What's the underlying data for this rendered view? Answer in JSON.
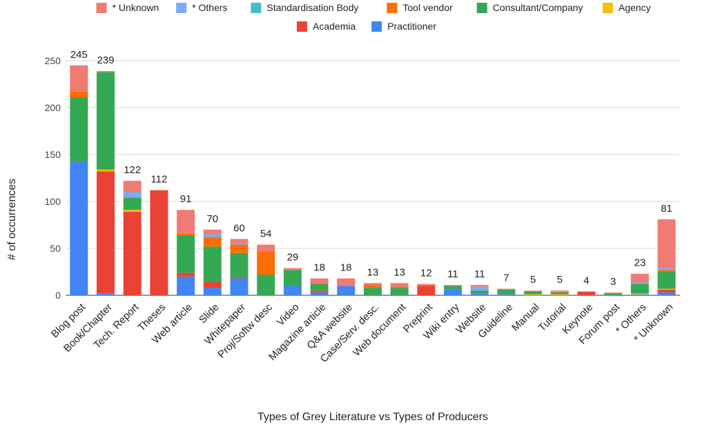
{
  "chart_data": {
    "type": "bar",
    "stacked": true,
    "title": "",
    "xlabel": "Types of Grey Literature vs Types of Producers",
    "ylabel": "# of occurrences",
    "ylim": [
      0,
      260
    ],
    "yticks": [
      0,
      50,
      100,
      150,
      200,
      250
    ],
    "grid": true,
    "legend_position": "top",
    "categories": [
      "Blog post",
      "Book/Chapter",
      "Tech. Report",
      "Theses",
      "Web article",
      "Slide",
      "Whitepaper",
      "Proj/Softw desc",
      "Video",
      "Magazine article",
      "Q&A website",
      "Case/Serv. desc.",
      "Web document",
      "Preprint",
      "Wiki entry",
      "Website",
      "Guideline",
      "Manual",
      "Tutorial",
      "Keynote",
      "Forum post",
      "* Others",
      "* Unknown"
    ],
    "totals": [
      245,
      239,
      122,
      112,
      91,
      70,
      60,
      54,
      29,
      18,
      18,
      13,
      13,
      12,
      11,
      11,
      7,
      5,
      5,
      4,
      3,
      23,
      81
    ],
    "series": [
      {
        "name": "Practitioner",
        "color": "#4285f4",
        "values": [
          142,
          2,
          0,
          0,
          20,
          8,
          18,
          0,
          10,
          3,
          10,
          0,
          0,
          0,
          6,
          2,
          1,
          0,
          0,
          0,
          0,
          1,
          3
        ]
      },
      {
        "name": "Academia",
        "color": "#ea4335",
        "values": [
          0,
          130,
          89,
          112,
          4,
          6,
          1,
          0,
          0,
          2,
          0,
          0,
          0,
          10,
          0,
          0,
          0,
          0,
          0,
          4,
          0,
          0,
          3
        ]
      },
      {
        "name": "Agency",
        "color": "#fbbc04",
        "values": [
          0,
          2,
          2,
          0,
          0,
          0,
          0,
          0,
          0,
          0,
          0,
          0,
          0,
          0,
          0,
          0,
          0,
          1,
          1,
          0,
          0,
          1,
          1
        ]
      },
      {
        "name": "Consultant/Company",
        "color": "#34a853",
        "values": [
          69,
          104,
          13,
          0,
          40,
          38,
          26,
          22,
          17,
          7,
          0,
          8,
          8,
          0,
          4,
          3,
          5,
          3,
          2,
          0,
          2,
          10,
          18
        ]
      },
      {
        "name": "Tool vendor",
        "color": "#ff6d01",
        "values": [
          6,
          0,
          0,
          0,
          2,
          10,
          9,
          25,
          0,
          1,
          0,
          3,
          1,
          1,
          0,
          0,
          0,
          0,
          0,
          0,
          0,
          1,
          2
        ]
      },
      {
        "name": "Standardisation Body",
        "color": "#46bdc6",
        "values": [
          0,
          0,
          0,
          0,
          0,
          0,
          0,
          0,
          0,
          0,
          0,
          0,
          0,
          0,
          0,
          0,
          0,
          0,
          0,
          0,
          0,
          0,
          0
        ]
      },
      {
        "name": "* Others",
        "color": "#7baaf7",
        "values": [
          0,
          0,
          6,
          0,
          0,
          3,
          1,
          0,
          0,
          0,
          0,
          0,
          0,
          0,
          0,
          4,
          0,
          0,
          0,
          0,
          0,
          1,
          2
        ]
      },
      {
        "name": "* Unknown",
        "color": "#f07b72",
        "values": [
          28,
          1,
          12,
          0,
          25,
          5,
          5,
          7,
          2,
          5,
          8,
          2,
          4,
          1,
          1,
          2,
          1,
          1,
          2,
          0,
          1,
          9,
          52
        ]
      }
    ],
    "legend_rows": [
      [
        "* Unknown",
        "* Others",
        "Standardisation Body",
        "Tool vendor",
        "Consultant/Company",
        "Agency"
      ],
      [
        "Academia",
        "Practitioner"
      ]
    ]
  }
}
